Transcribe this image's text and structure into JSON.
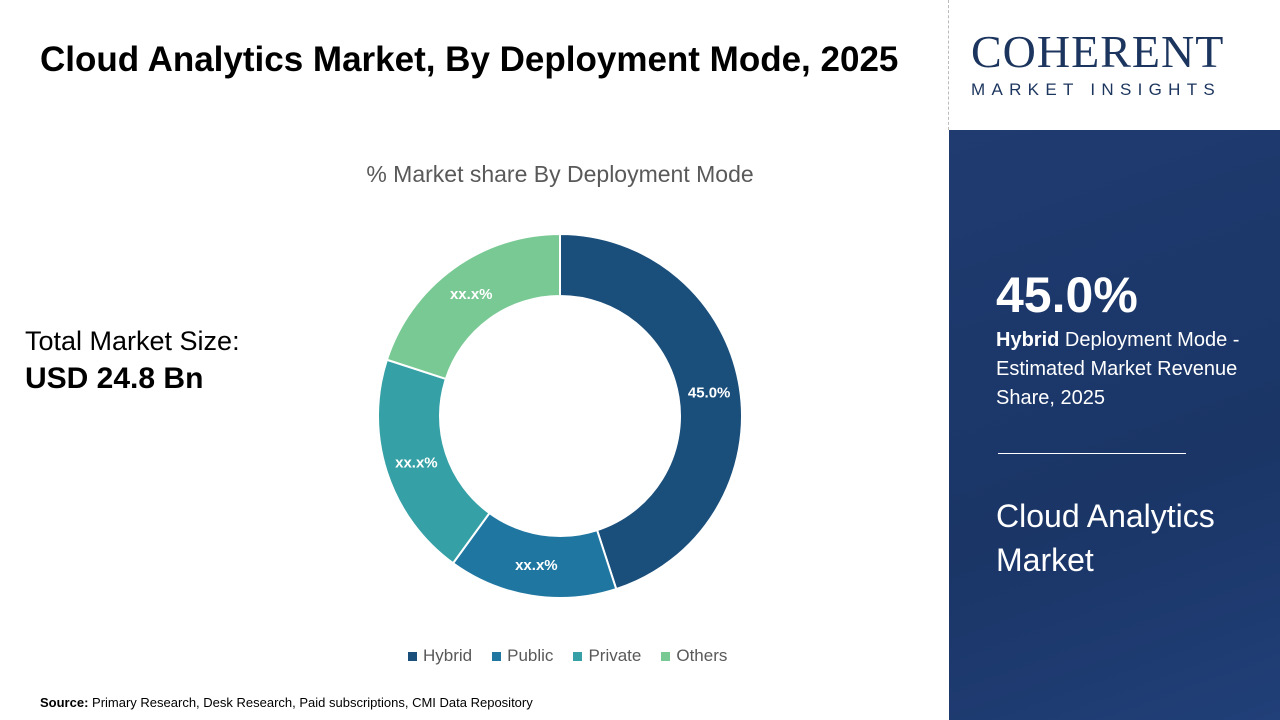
{
  "title": "Cloud Analytics Market, By Deployment Mode, 2025",
  "total_market": {
    "label": "Total Market Size:",
    "value": "USD 24.8 Bn"
  },
  "source": {
    "label": "Source:",
    "text": "Primary Research, Desk Research, Paid subscriptions, CMI Data Repository"
  },
  "logo": {
    "name": "COHERENT",
    "tagline": "MARKET INSIGHTS"
  },
  "panel": {
    "percent": "45.0%",
    "highlight": "Hybrid",
    "desc": " Deployment Mode - Estimated Market Revenue Share, 2025",
    "market": "Cloud Analytics Market"
  },
  "chart_data": {
    "type": "pie",
    "donut": true,
    "title": "% Market share By Deployment Mode",
    "categories": [
      "Hybrid",
      "Public",
      "Private",
      "Others"
    ],
    "values": [
      45.0,
      15,
      20,
      20
    ],
    "data_labels": [
      "45.0%",
      "xx.x%",
      "xx.x%",
      "xx.x%"
    ],
    "colors": [
      "#1b4f7b",
      "#1f77a1",
      "#35a1a6",
      "#79c994"
    ],
    "legend": "bottom"
  }
}
